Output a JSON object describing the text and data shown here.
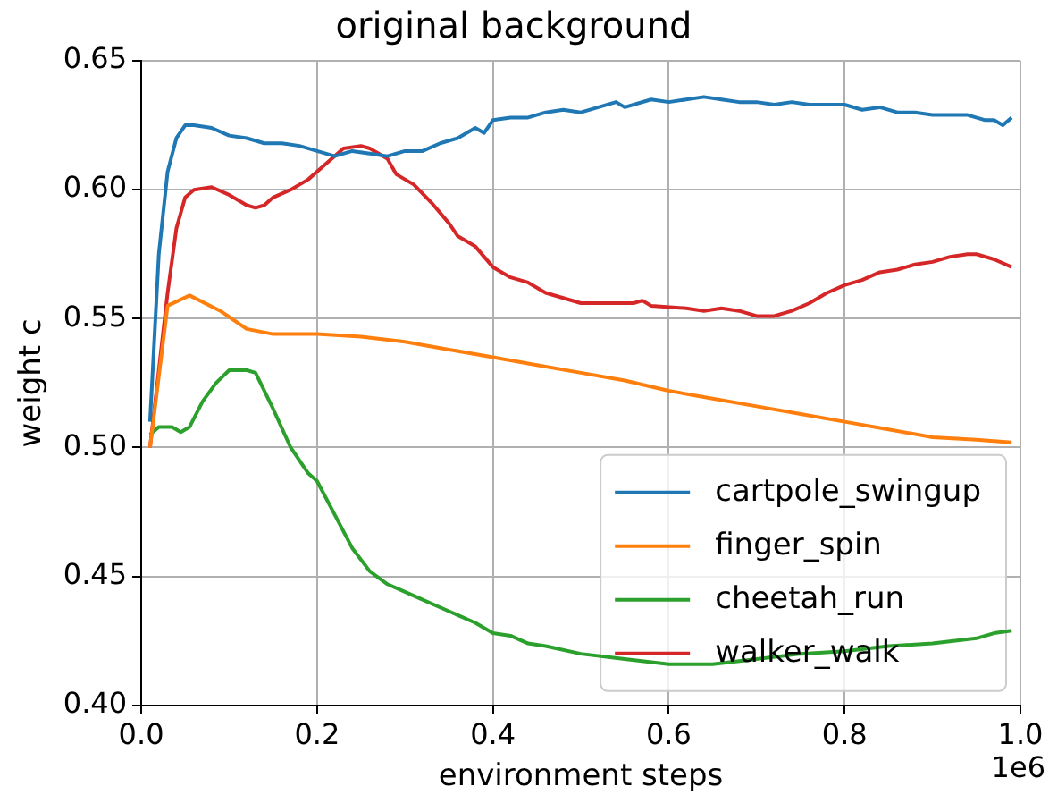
{
  "chart_data": {
    "type": "line",
    "title": "original background",
    "xlabel": "environment steps",
    "ylabel": "weight c",
    "annotations": [
      "1e6"
    ],
    "xlim": [
      0,
      1
    ],
    "xticks": [
      {
        "value": 0,
        "label": "0.0"
      },
      {
        "value": 0.2,
        "label": "0.2"
      },
      {
        "value": 0.4,
        "label": "0.4"
      },
      {
        "value": 0.6,
        "label": "0.6"
      },
      {
        "value": 0.8,
        "label": "0.8"
      },
      {
        "value": 1,
        "label": "1.0"
      }
    ],
    "ylim": [
      0.4,
      0.65
    ],
    "yticks": [
      {
        "value": 0.4,
        "label": "0.40"
      },
      {
        "value": 0.45,
        "label": "0.45"
      },
      {
        "value": 0.5,
        "label": "0.50"
      },
      {
        "value": 0.55,
        "label": "0.55"
      },
      {
        "value": 0.6,
        "label": "0.60"
      },
      {
        "value": 0.65,
        "label": "0.65"
      }
    ],
    "grid": true,
    "legend": "bottom right",
    "marker": "none",
    "line_style": "solid",
    "series": [
      {
        "name": "cartpole_swingup",
        "color": "#1f77b4",
        "x": [
          0.01,
          0.02,
          0.03,
          0.04,
          0.05,
          0.06,
          0.08,
          0.1,
          0.12,
          0.14,
          0.16,
          0.18,
          0.2,
          0.22,
          0.24,
          0.26,
          0.28,
          0.3,
          0.32,
          0.34,
          0.36,
          0.38,
          0.39,
          0.4,
          0.42,
          0.44,
          0.46,
          0.48,
          0.5,
          0.52,
          0.54,
          0.55,
          0.58,
          0.6,
          0.62,
          0.64,
          0.66,
          0.68,
          0.7,
          0.72,
          0.74,
          0.76,
          0.78,
          0.8,
          0.82,
          0.84,
          0.86,
          0.88,
          0.9,
          0.92,
          0.94,
          0.96,
          0.97,
          0.98,
          0.99
        ],
        "values": [
          0.51,
          0.575,
          0.607,
          0.62,
          0.625,
          0.625,
          0.624,
          0.621,
          0.62,
          0.618,
          0.618,
          0.617,
          0.615,
          0.613,
          0.615,
          0.614,
          0.613,
          0.615,
          0.615,
          0.618,
          0.62,
          0.624,
          0.622,
          0.627,
          0.628,
          0.628,
          0.63,
          0.631,
          0.63,
          0.632,
          0.634,
          0.632,
          0.635,
          0.634,
          0.635,
          0.636,
          0.635,
          0.634,
          0.634,
          0.633,
          0.634,
          0.633,
          0.633,
          0.633,
          0.631,
          0.632,
          0.63,
          0.63,
          0.629,
          0.629,
          0.629,
          0.627,
          0.627,
          0.625,
          0.628
        ]
      },
      {
        "name": "finger_spin",
        "color": "#ff7f0e",
        "x": [
          0.01,
          0.03,
          0.055,
          0.09,
          0.12,
          0.15,
          0.2,
          0.25,
          0.3,
          0.35,
          0.4,
          0.45,
          0.5,
          0.55,
          0.6,
          0.65,
          0.7,
          0.75,
          0.8,
          0.85,
          0.9,
          0.95,
          0.99
        ],
        "values": [
          0.5,
          0.555,
          0.559,
          0.553,
          0.546,
          0.544,
          0.544,
          0.543,
          0.541,
          0.538,
          0.535,
          0.532,
          0.529,
          0.526,
          0.522,
          0.519,
          0.516,
          0.513,
          0.51,
          0.507,
          0.504,
          0.503,
          0.502
        ]
      },
      {
        "name": "cheetah_run",
        "color": "#2ca02c",
        "x": [
          0.01,
          0.02,
          0.035,
          0.045,
          0.055,
          0.07,
          0.085,
          0.1,
          0.12,
          0.13,
          0.15,
          0.17,
          0.19,
          0.2,
          0.22,
          0.24,
          0.26,
          0.28,
          0.3,
          0.32,
          0.34,
          0.36,
          0.38,
          0.4,
          0.42,
          0.44,
          0.46,
          0.5,
          0.55,
          0.6,
          0.65,
          0.7,
          0.75,
          0.8,
          0.85,
          0.9,
          0.95,
          0.97,
          0.99
        ],
        "values": [
          0.505,
          0.508,
          0.508,
          0.506,
          0.508,
          0.518,
          0.525,
          0.53,
          0.53,
          0.529,
          0.515,
          0.5,
          0.49,
          0.487,
          0.474,
          0.461,
          0.452,
          0.447,
          0.444,
          0.441,
          0.438,
          0.435,
          0.432,
          0.428,
          0.427,
          0.424,
          0.423,
          0.42,
          0.418,
          0.416,
          0.416,
          0.418,
          0.42,
          0.421,
          0.423,
          0.424,
          0.426,
          0.428,
          0.429
        ]
      },
      {
        "name": "walker_walk",
        "color": "#d62728",
        "x": [
          0.01,
          0.02,
          0.03,
          0.04,
          0.05,
          0.06,
          0.08,
          0.1,
          0.12,
          0.13,
          0.14,
          0.15,
          0.17,
          0.19,
          0.21,
          0.23,
          0.25,
          0.26,
          0.28,
          0.29,
          0.31,
          0.33,
          0.35,
          0.36,
          0.38,
          0.4,
          0.42,
          0.44,
          0.46,
          0.48,
          0.5,
          0.52,
          0.54,
          0.56,
          0.57,
          0.58,
          0.62,
          0.64,
          0.66,
          0.68,
          0.7,
          0.72,
          0.74,
          0.76,
          0.78,
          0.8,
          0.82,
          0.84,
          0.86,
          0.88,
          0.9,
          0.92,
          0.94,
          0.95,
          0.97,
          0.99
        ],
        "values": [
          0.5,
          0.53,
          0.56,
          0.585,
          0.597,
          0.6,
          0.601,
          0.598,
          0.594,
          0.593,
          0.594,
          0.597,
          0.6,
          0.604,
          0.61,
          0.616,
          0.617,
          0.616,
          0.612,
          0.606,
          0.602,
          0.595,
          0.587,
          0.582,
          0.578,
          0.57,
          0.566,
          0.564,
          0.56,
          0.558,
          0.556,
          0.556,
          0.556,
          0.556,
          0.557,
          0.555,
          0.554,
          0.553,
          0.554,
          0.553,
          0.551,
          0.551,
          0.553,
          0.556,
          0.56,
          0.563,
          0.565,
          0.568,
          0.569,
          0.571,
          0.572,
          0.574,
          0.575,
          0.575,
          0.573,
          0.57
        ]
      }
    ]
  }
}
